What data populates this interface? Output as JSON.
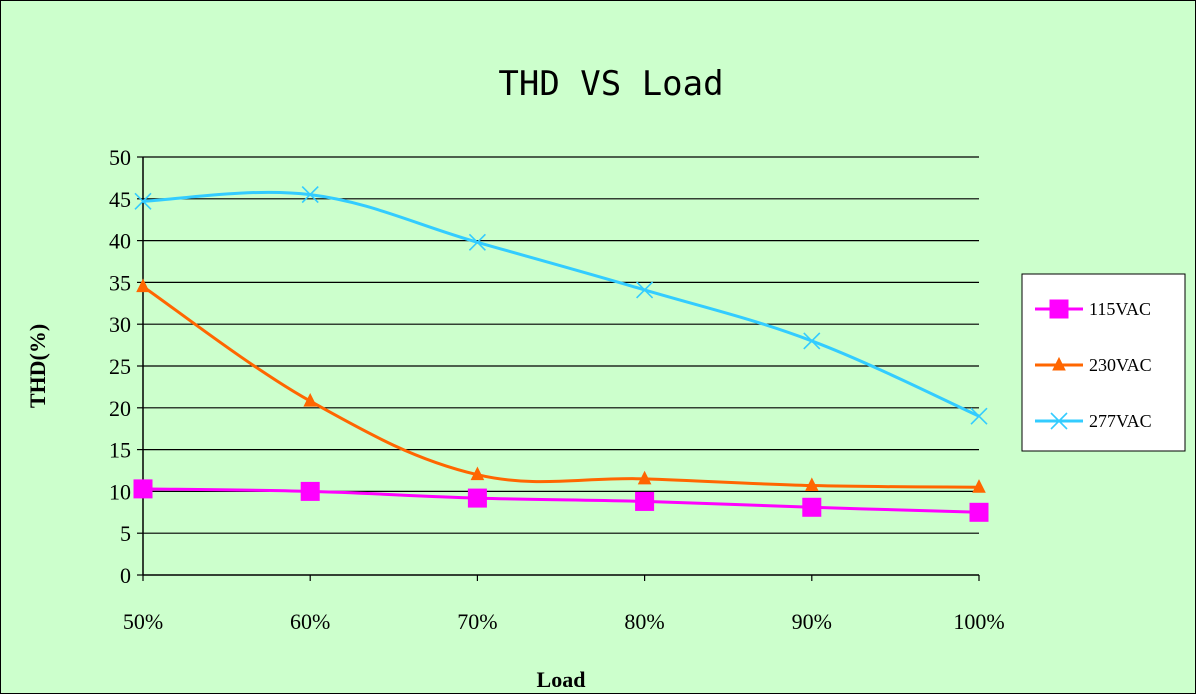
{
  "chart_data": {
    "type": "line",
    "title": "THD VS Load",
    "xlabel": "Load",
    "ylabel": "THD(%)",
    "categories": [
      "50%",
      "60%",
      "70%",
      "80%",
      "90%",
      "100%"
    ],
    "ylim": [
      0,
      50
    ],
    "yticks": [
      "0",
      "5",
      "10",
      "15",
      "20",
      "25",
      "30",
      "35",
      "40",
      "45",
      "50"
    ],
    "grid": true,
    "legend_position": "right",
    "series": [
      {
        "name": "115VAC",
        "values": [
          10.3,
          10.0,
          9.2,
          8.8,
          8.1,
          7.5
        ],
        "color": "#ff00ff",
        "marker": "square"
      },
      {
        "name": "230VAC",
        "values": [
          34.5,
          20.8,
          12.0,
          11.5,
          10.7,
          10.5
        ],
        "color": "#ff6600",
        "marker": "triangle"
      },
      {
        "name": "277VAC",
        "values": [
          44.7,
          45.5,
          39.8,
          34.1,
          28.0,
          19.0
        ],
        "color": "#33ccff",
        "marker": "x"
      }
    ],
    "background_color": "#ccffcc"
  }
}
